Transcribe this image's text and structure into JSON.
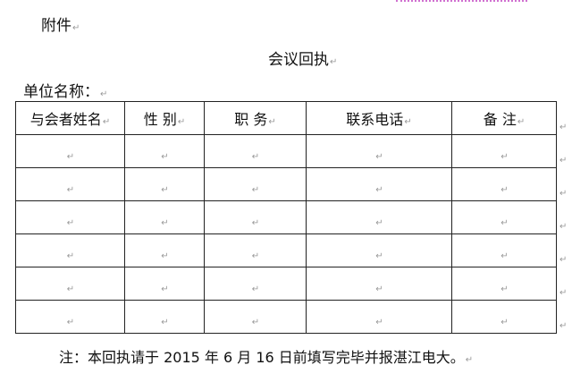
{
  "para_mark": "↵",
  "attachment_label": "附件",
  "title": "会议回执",
  "unit_label": "单位名称：",
  "table": {
    "headers": [
      "与会者姓名",
      "性  别",
      "职  务",
      "联系电话",
      "备  注"
    ],
    "rows": [
      [
        "",
        "",
        "",
        "",
        ""
      ],
      [
        "",
        "",
        "",
        "",
        ""
      ],
      [
        "",
        "",
        "",
        "",
        ""
      ],
      [
        "",
        "",
        "",
        "",
        ""
      ],
      [
        "",
        "",
        "",
        "",
        ""
      ],
      [
        "",
        "",
        "",
        "",
        ""
      ]
    ]
  },
  "note": "注：本回执请于 2015 年 6 月 16 日前填写完毕并报湛江电大。"
}
